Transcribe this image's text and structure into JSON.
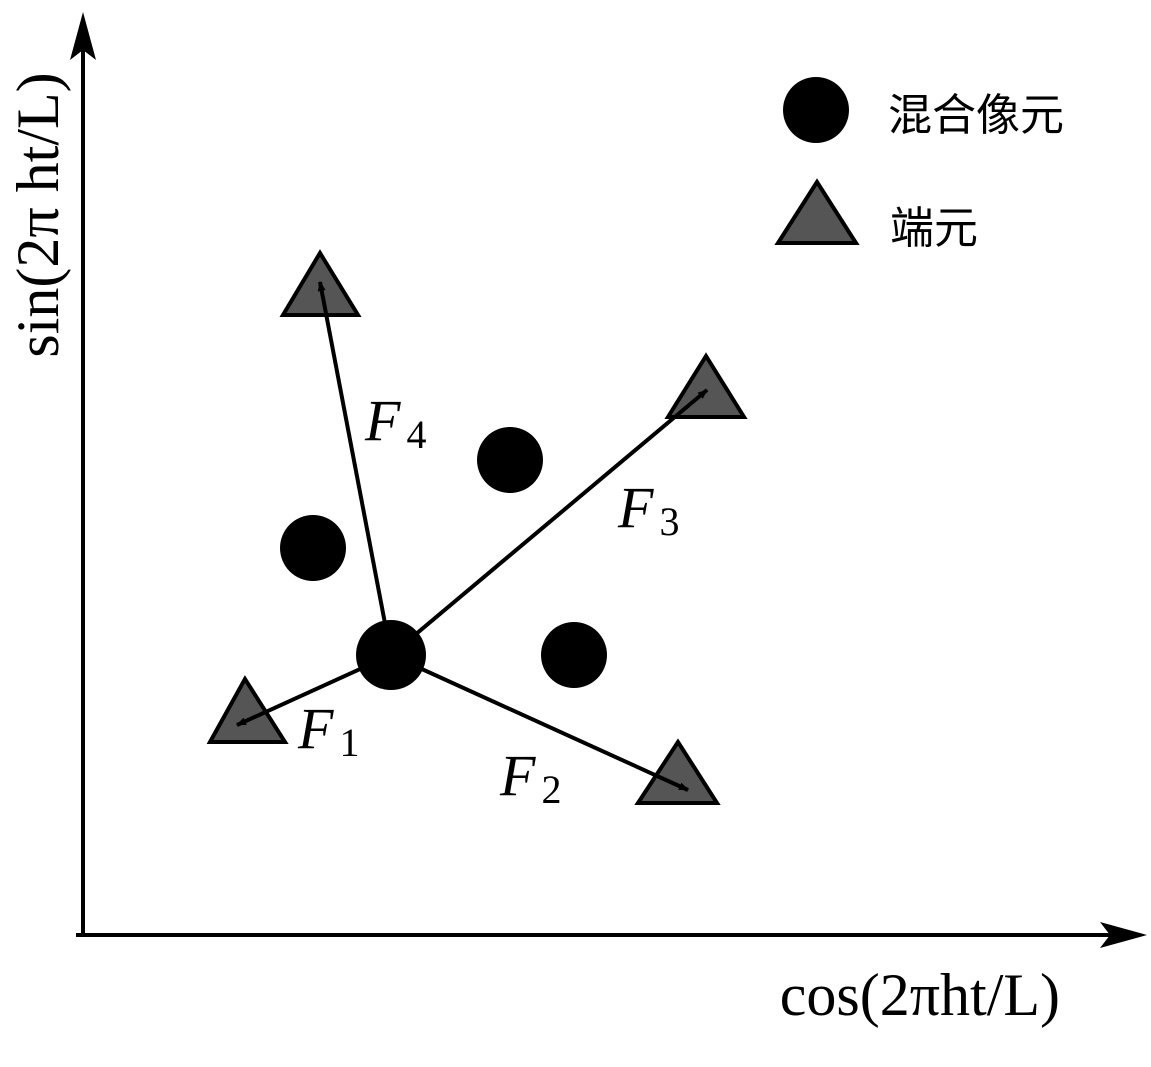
{
  "axes": {
    "x_label": "cos(2πht/L)",
    "y_label": "sin(2π ht/L)"
  },
  "legend": [
    {
      "label": "混合像元"
    },
    {
      "label": "端元"
    }
  ],
  "vectors": [
    {
      "symbol": "F",
      "index": "1"
    },
    {
      "symbol": "F",
      "index": "2"
    },
    {
      "symbol": "F",
      "index": "3"
    },
    {
      "symbol": "F",
      "index": "4"
    }
  ]
}
